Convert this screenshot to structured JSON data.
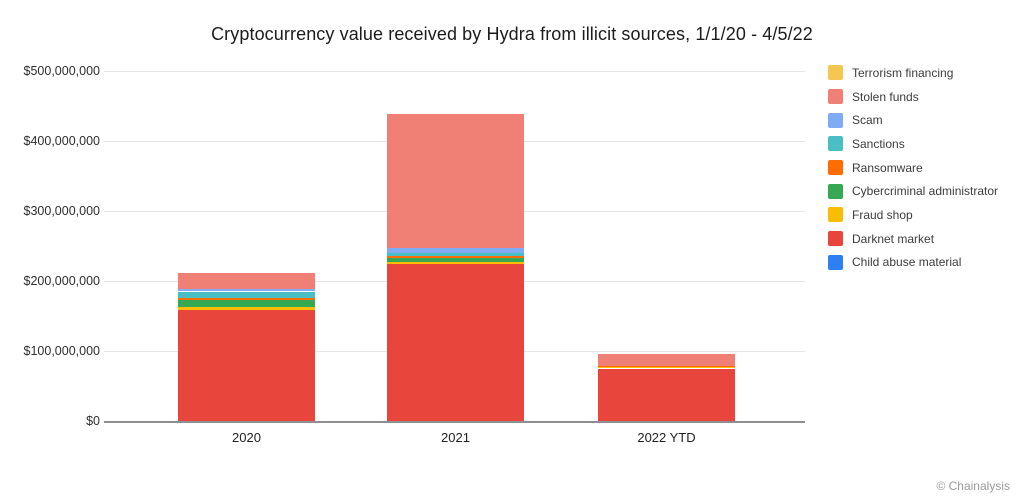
{
  "copyright": "© Chainalysis",
  "chart_data": {
    "type": "bar",
    "stacked": true,
    "title": "Cryptocurrency value received by Hydra from illicit sources, 1/1/20 - 4/5/22",
    "categories": [
      "2020",
      "2021",
      "2022 YTD"
    ],
    "series": [
      {
        "name": "Child abuse material",
        "color": "#2E7FF1",
        "values": [
          0,
          0,
          0
        ]
      },
      {
        "name": "Darknet market",
        "color": "#E8453C",
        "values": [
          159000000,
          224000000,
          75000000
        ]
      },
      {
        "name": "Fraud shop",
        "color": "#FBBC04",
        "values": [
          4000000,
          3000000,
          2000000
        ]
      },
      {
        "name": "Cybercriminal administrator",
        "color": "#34A853",
        "values": [
          10000000,
          6000000,
          0
        ]
      },
      {
        "name": "Ransomware",
        "color": "#FF6D01",
        "values": [
          3000000,
          3000000,
          1000000
        ]
      },
      {
        "name": "Sanctions",
        "color": "#49BEC5",
        "values": [
          9000000,
          4000000,
          0
        ]
      },
      {
        "name": "Scam",
        "color": "#7FAAF4",
        "values": [
          4000000,
          7000000,
          0
        ]
      },
      {
        "name": "Stolen funds",
        "color": "#F08076",
        "values": [
          22000000,
          192000000,
          18000000
        ]
      },
      {
        "name": "Terrorism financing",
        "color": "#F6C750",
        "values": [
          0,
          0,
          0
        ]
      }
    ],
    "totals": [
      211000000,
      439000000,
      96000000
    ],
    "legend_order": [
      "Terrorism financing",
      "Stolen funds",
      "Scam",
      "Sanctions",
      "Ransomware",
      "Cybercriminal administrator",
      "Fraud shop",
      "Darknet market",
      "Child abuse material"
    ],
    "legend_position": "right",
    "grid": "horizontal",
    "xlabel": "",
    "ylabel": "",
    "ylim": [
      0,
      500000000
    ],
    "yticks": [
      0,
      100000000,
      200000000,
      300000000,
      400000000,
      500000000
    ],
    "ytick_labels": [
      "$0",
      "$100,000,000",
      "$200,000,000",
      "$300,000,000",
      "$400,000,000",
      "$500,000,000"
    ]
  }
}
